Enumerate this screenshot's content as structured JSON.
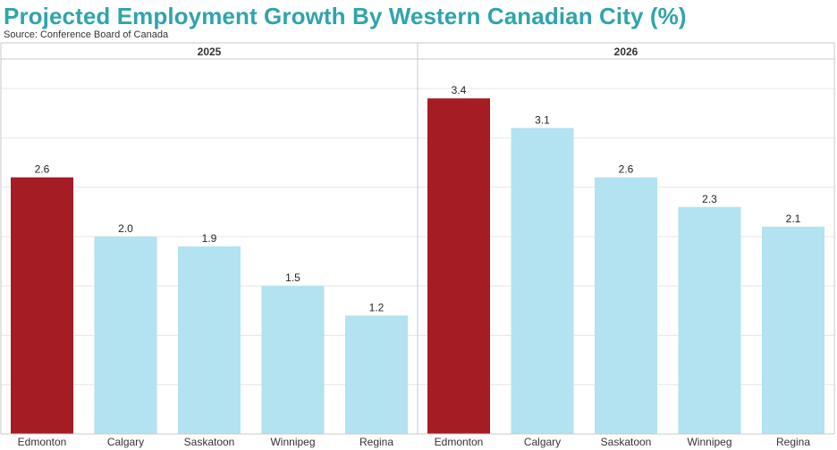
{
  "header": {
    "title": "Projected Employment Growth By Western Canadian City (%)",
    "source": "Source: Conference Board of Canada"
  },
  "colors": {
    "title": "#2fa4ab",
    "highlight_bar": "#a51c24",
    "bar": "#b3e2f0",
    "gridline": "#e6e6e6",
    "border": "#c8c8c8"
  },
  "chart_data": [
    {
      "type": "bar",
      "panel_title": "2025",
      "categories": [
        "Edmonton",
        "Calgary",
        "Saskatoon",
        "Winnipeg",
        "Regina"
      ],
      "values": [
        2.6,
        2.0,
        1.9,
        1.5,
        1.2
      ],
      "value_labels": [
        "2.6",
        "2.0",
        "1.9",
        "1.5",
        "1.2"
      ],
      "highlight": "Edmonton",
      "ylim": [
        0,
        3.8
      ],
      "grid": true
    },
    {
      "type": "bar",
      "panel_title": "2026",
      "categories": [
        "Edmonton",
        "Calgary",
        "Saskatoon",
        "Winnipeg",
        "Regina"
      ],
      "values": [
        3.4,
        3.1,
        2.6,
        2.3,
        2.1
      ],
      "value_labels": [
        "3.4",
        "3.1",
        "2.6",
        "2.3",
        "2.1"
      ],
      "highlight": "Edmonton",
      "ylim": [
        0,
        3.8
      ],
      "grid": true
    }
  ]
}
